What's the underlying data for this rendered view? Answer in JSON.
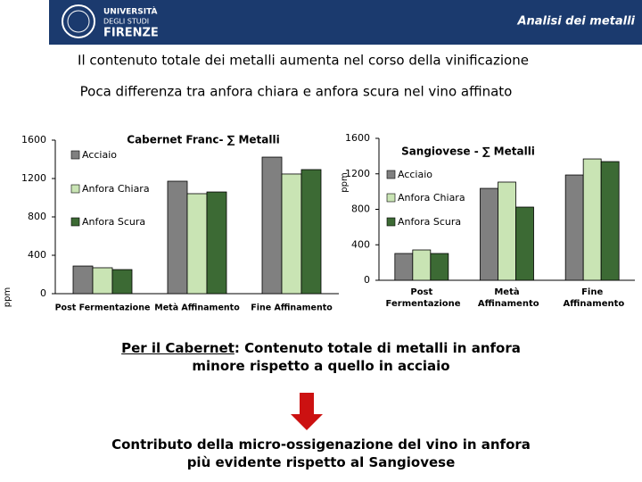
{
  "header": {
    "logo_lines": [
      "UNIVERSITÀ",
      "DEGLI STUDI",
      "FIRENZE"
    ],
    "title": "Analisi dei metalli"
  },
  "subtitles": [
    "Il contenuto totale dei metalli aumenta nel corso della vinificazione",
    "Poca differenza tra anfora chiara e anfora scura nel vino affinato"
  ],
  "conclusion": {
    "lead": "Per il Cabernet",
    "text": ": Contenuto totale di metalli in anfora minore rispetto a quello in acciaio",
    "bottom": "Contributo della  micro-ossigenazione del vino in anfora più evidente rispetto al Sangiovese"
  },
  "chart_data": [
    {
      "type": "bar",
      "title": "Cabernet Franc- ∑ Metalli",
      "ylabel": "ppm",
      "categories": [
        "Post Fermentazione",
        "Metà Affinamento",
        "Fine Affinamento"
      ],
      "series": [
        {
          "name": "Acciaio",
          "color": "#808080",
          "values": [
            288,
            1172,
            1423
          ]
        },
        {
          "name": "Anfora Chiara",
          "color": "#c9e4b4",
          "values": [
            270,
            1042,
            1247
          ]
        },
        {
          "name": "Anfora Scura",
          "color": "#3c6a34",
          "values": [
            251,
            1060,
            1293
          ]
        }
      ],
      "ylim": [
        0,
        1600
      ],
      "yticks": [
        0,
        400,
        800,
        1200,
        1600
      ],
      "legend": "upper left"
    },
    {
      "type": "bar",
      "title": "Sangiovese - ∑ Metalli",
      "ylabel": "ppm",
      "categories": [
        "Post Fermentazione",
        "Metà Affinamento",
        "Fine Affinamento"
      ],
      "series": [
        {
          "name": "Acciaio",
          "color": "#808080",
          "values": [
            302,
            1036,
            1187
          ]
        },
        {
          "name": "Anfora Chiara",
          "color": "#c9e4b4",
          "values": [
            342,
            1107,
            1368
          ]
        },
        {
          "name": "Anfora Scura",
          "color": "#3c6a34",
          "values": [
            302,
            825,
            1338
          ]
        }
      ],
      "ylim": [
        0,
        1600
      ],
      "yticks": [
        0,
        400,
        800,
        1200,
        1600
      ],
      "legend": "upper left"
    }
  ]
}
